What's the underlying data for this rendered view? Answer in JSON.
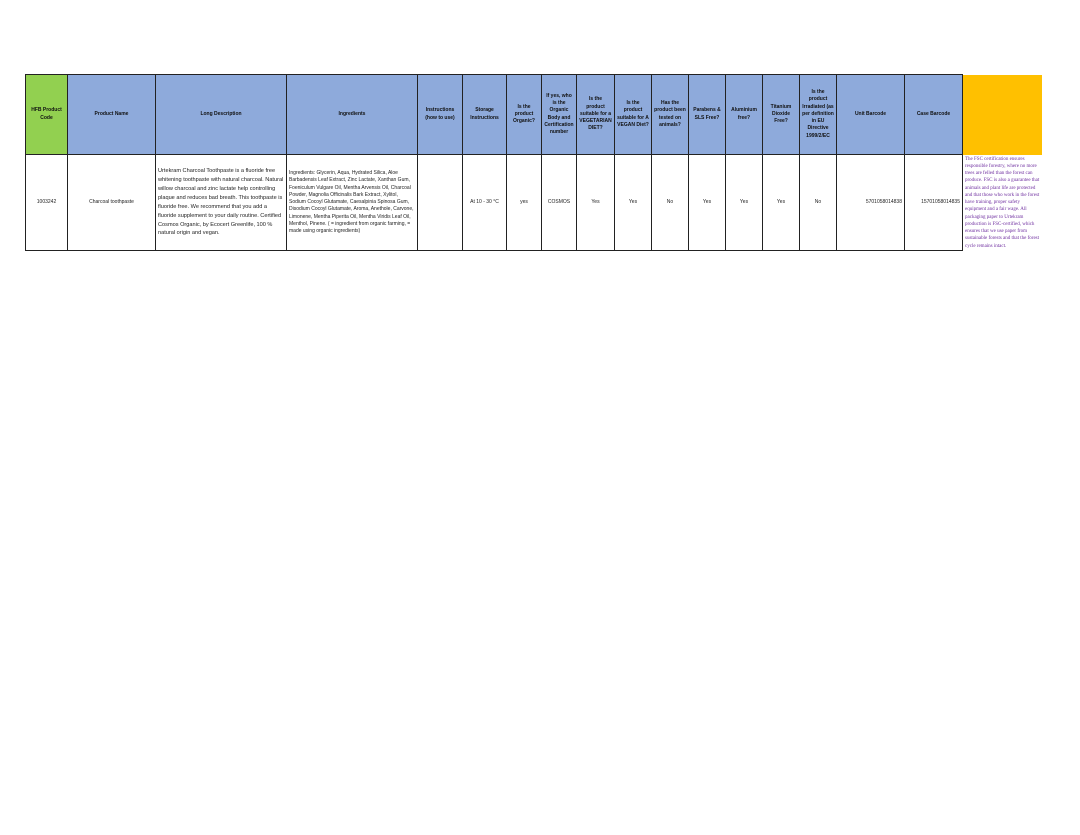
{
  "headers": [
    "HFB Product Code",
    "Product Name",
    "Long Description",
    "Ingredients",
    "Instructions (how to use)",
    "Storage Instructions",
    "Is the product Organic?",
    "If yes, who is the Organic Body and Certification number",
    "Is the product suitable for a VEGETARIAN DIET?",
    "Is the product suitable for A VEGAN Diet?",
    "Has the product been tested on animals?",
    "Parabens & SLS Free?",
    "Aluminium free?",
    "Titanium Dioxide Free?",
    "Is the product Irradiated (as per definition in EU Directive 1999/2/EC",
    "Unit Barcode",
    "Case Barcode",
    ""
  ],
  "row": {
    "code": "1003242",
    "name": "Charcoal toothpaste",
    "description": "Urtekram Charcoal Toothpaste is a fluoride free whitening toothpaste with natural charcoal. Natural willow charcoal and zinc lactate help controlling plaque and reduces bad breath. This toothpaste is fluoride free. We recommend that you add a fluoride supplement to your daily routine. Certified Cosmos Organic, by Ecocert Greenlife, 100 % natural origin and vegan.",
    "ingredients": "Ingredients: Glycerin, Aqua, Hydrated Silica, Aloe Barbadensis Leaf Extract, Zinc Lactate, Xanthan Gum, Foeniculum Vulgare Oil, Mentha Arvensis Oil, Charcoal Powder, Magnolia Officinalis Bark Extract, Xylitol, Sodium Cocoyl Glutamate, Caesalpinia Spinosa Gum, Disodium Cocoyl Glutamate, Aroma, Anethole, Carvone, Limonene, Mentha Piperita Oil, Mentha Viridis Leaf Oil, Menthol, Pinene. ( = ingredient from organic farming, = made using organic ingredients)",
    "instructions": "",
    "storage": "At 10 - 30 °C",
    "organic": "yes",
    "organic_body": "COSMOS",
    "vegetarian": "Yes",
    "vegan": "Yes",
    "animal_tested": "No",
    "parabens_sls_free": "Yes",
    "aluminium_free": "Yes",
    "titanium_free": "Yes",
    "irradiated": "No",
    "unit_barcode": "5701058014838",
    "case_barcode": "15701058014835",
    "note": "The FSC certification ensures responsible forestry, where no more trees are felled than the forest can produce. FSC is also a guarantee that animals and plant life are protected and that those who work in the forest have training, proper safety equipment and a fair wage. All packaging paper to Urtekram production is FSC-certified, which ensures that we use paper from sustainable forests and that the forest cycle remains intact."
  },
  "colors": {
    "header": "#8eaadb",
    "first_header": "#92d050",
    "last_header": "#ffc000",
    "note_text": "#7030a0"
  }
}
